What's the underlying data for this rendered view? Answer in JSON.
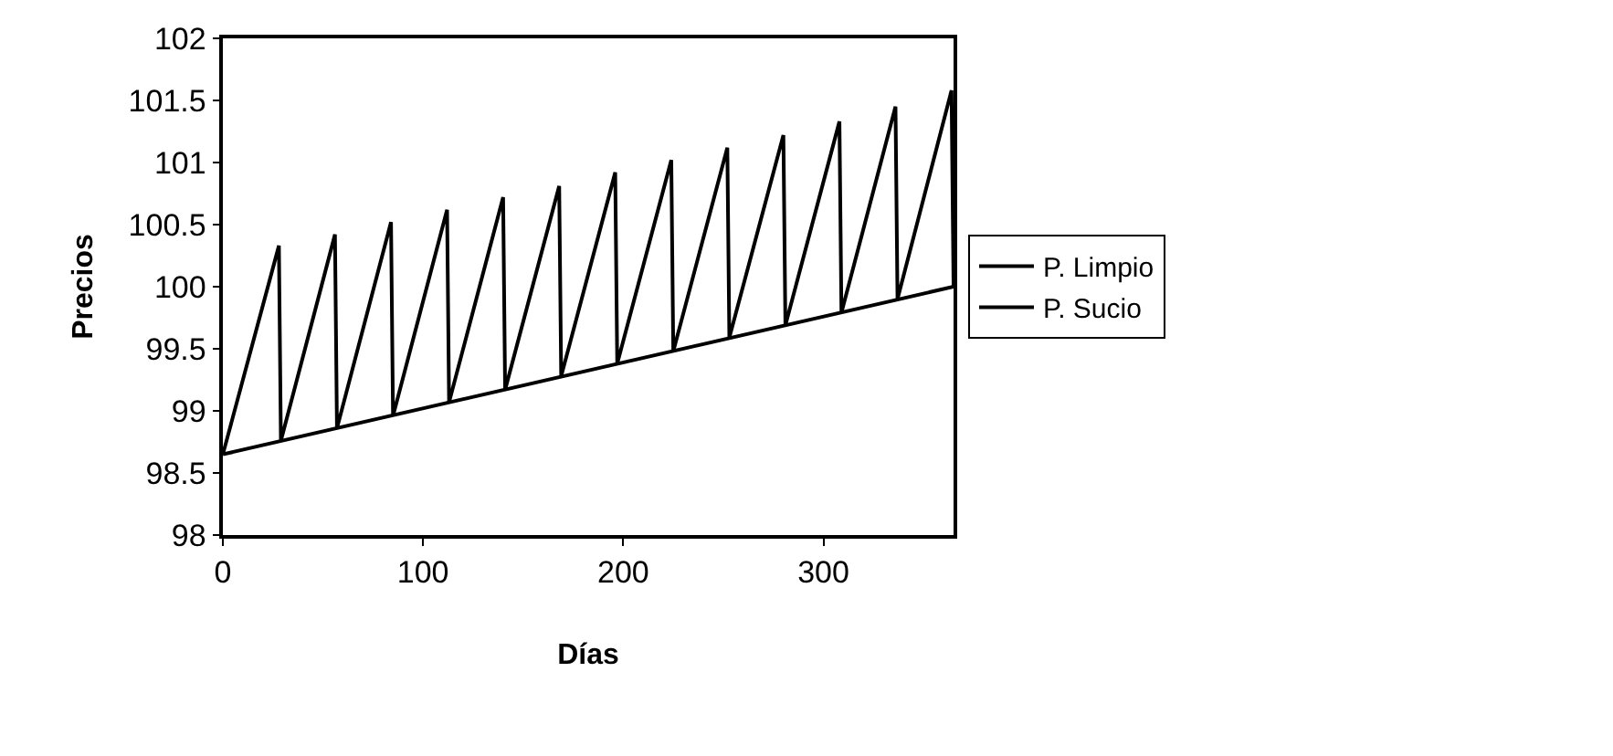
{
  "chart_data": {
    "type": "line",
    "xlabel": "Días",
    "ylabel": "Precios",
    "xlim": [
      0,
      365
    ],
    "xticks": [
      0,
      100,
      200,
      300
    ],
    "ylim": [
      98,
      102
    ],
    "yticks": [
      98,
      98.5,
      99,
      99.5,
      100,
      100.5,
      101,
      101.5,
      102
    ],
    "legend": "right",
    "marker": "none",
    "line_style": "solid",
    "series": [
      {
        "name": "P. Limpio",
        "color": "#000000",
        "x": [
          0,
          365
        ],
        "values": [
          98.65,
          100.0
        ]
      },
      {
        "name": "P. Sucio",
        "color": "#000000",
        "x": [
          0,
          28,
          29,
          56,
          57,
          84,
          85,
          112,
          113,
          140,
          141,
          168,
          169,
          196,
          197,
          224,
          225,
          252,
          253,
          280,
          281,
          308,
          309,
          336,
          337,
          364,
          365
        ],
        "values": [
          98.65,
          100.33,
          98.76,
          100.42,
          98.86,
          100.52,
          98.96,
          100.62,
          99.07,
          100.72,
          99.17,
          100.81,
          99.28,
          100.92,
          99.38,
          101.02,
          99.48,
          101.12,
          99.59,
          101.22,
          99.69,
          101.33,
          99.79,
          101.45,
          99.9,
          101.58,
          100.0
        ]
      }
    ]
  }
}
